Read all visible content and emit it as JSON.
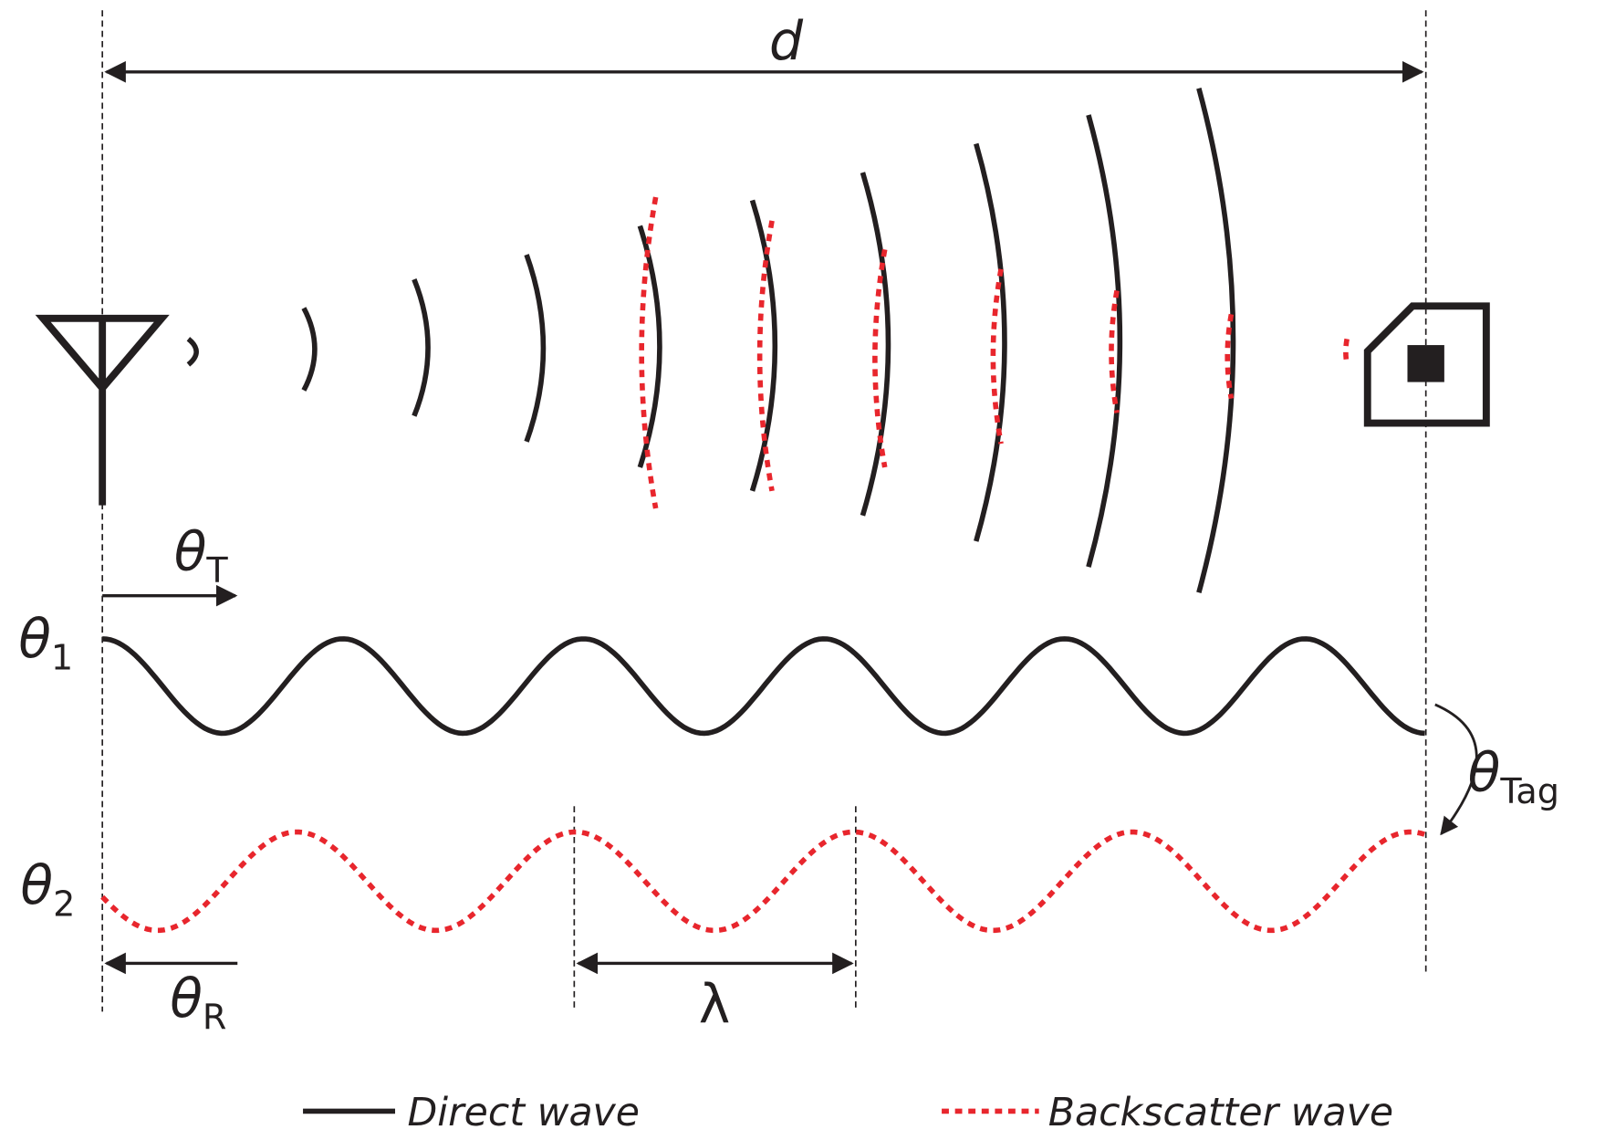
{
  "labels": {
    "distance": "d",
    "theta_t": {
      "symbol": "θ",
      "subscript": "T"
    },
    "theta_1": {
      "symbol": "θ",
      "subscript": "1"
    },
    "theta_2": {
      "symbol": "θ",
      "subscript": "2"
    },
    "theta_r": {
      "symbol": "θ",
      "subscript": "R"
    },
    "theta_tag": {
      "symbol": "θ",
      "subscript": "Tag"
    },
    "wavelength": "λ"
  },
  "legend": {
    "direct": "Direct wave",
    "backscatter": "Backscatter wave"
  }
}
